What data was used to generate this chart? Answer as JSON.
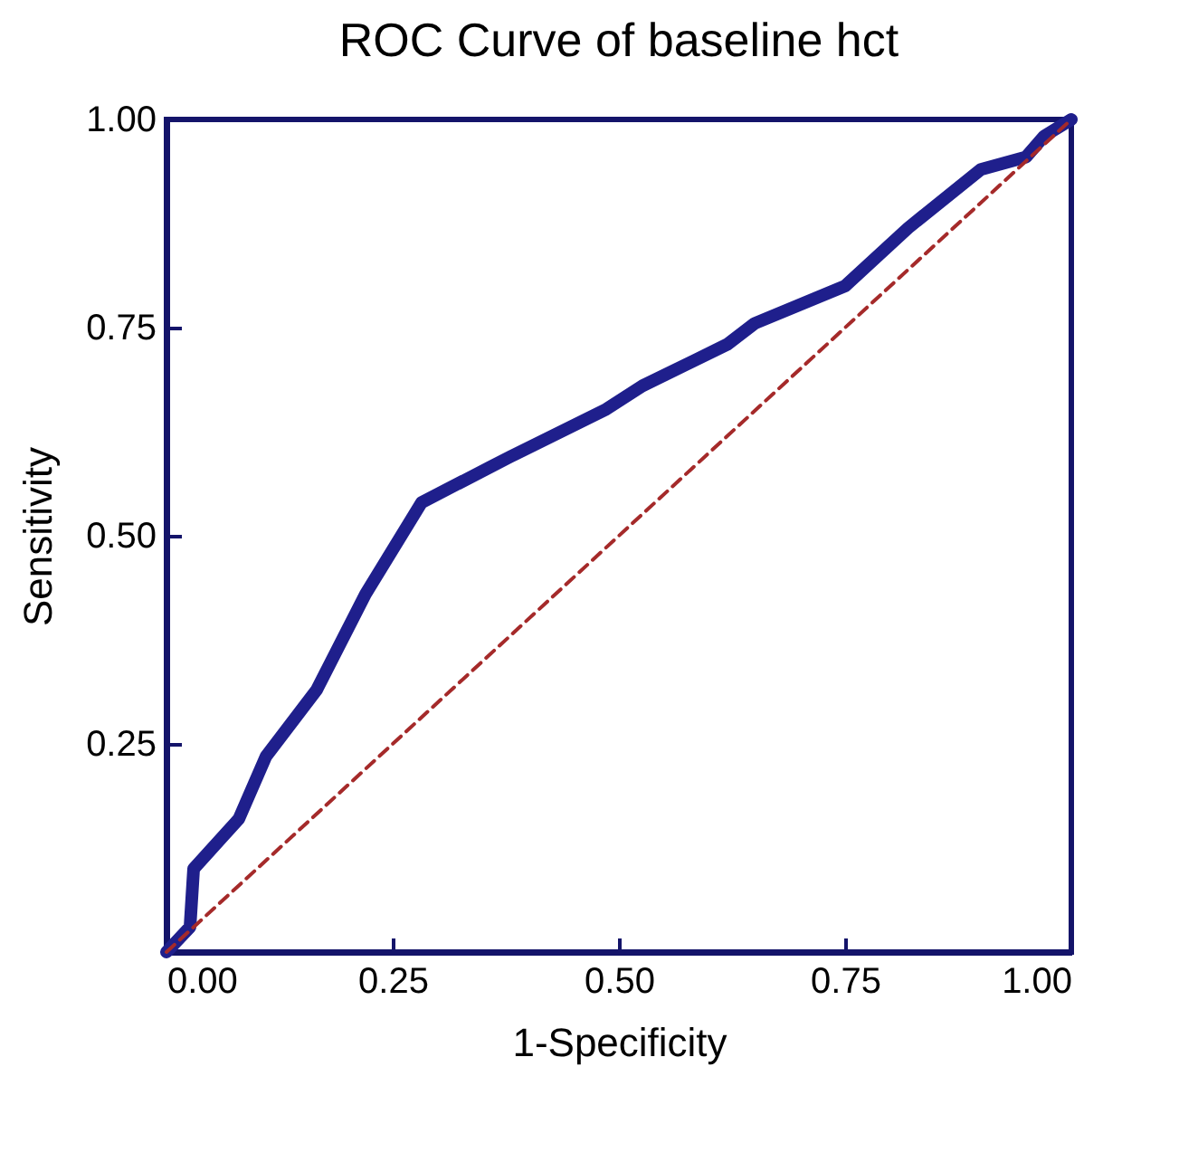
{
  "chart_data": {
    "type": "line",
    "title": "ROC   Curve   of baseline   hct",
    "xlabel": "1-Specificity",
    "ylabel": "Sensitivity",
    "xlim": [
      0,
      1
    ],
    "ylim": [
      0,
      1
    ],
    "xticks": [
      {
        "value": 0,
        "label": "0.00"
      },
      {
        "value": 0.25,
        "label": "0.25"
      },
      {
        "value": 0.5,
        "label": "0.50"
      },
      {
        "value": 0.75,
        "label": "0.75"
      },
      {
        "value": 1,
        "label": "1.00"
      }
    ],
    "yticks": [
      {
        "value": 0,
        "label": null
      },
      {
        "value": 0.25,
        "label": "0.25"
      },
      {
        "value": 0.5,
        "label": "0.50"
      },
      {
        "value": 0.75,
        "label": "0.75"
      },
      {
        "value": 1,
        "label": "1.00"
      }
    ],
    "grid": false,
    "marker": "none",
    "series": [
      {
        "color": "#1f1f8c",
        "line_style": "solid",
        "x": [
          0,
          0.026,
          0.03,
          0.08,
          0.11,
          0.166,
          0.22,
          0.282,
          0.38,
          0.486,
          0.526,
          0.62,
          0.65,
          0.75,
          0.82,
          0.9,
          0.95,
          0.97,
          1
        ],
        "values": [
          0,
          0.03,
          0.1,
          0.16,
          0.235,
          0.315,
          0.43,
          0.54,
          0.595,
          0.652,
          0.68,
          0.73,
          0.755,
          0.8,
          0.87,
          0.94,
          0.955,
          0.98,
          1
        ]
      },
      {
        "color": "#a52a2a",
        "line_style": "dashed",
        "x": [
          0,
          1
        ],
        "values": [
          0,
          1
        ]
      }
    ]
  }
}
